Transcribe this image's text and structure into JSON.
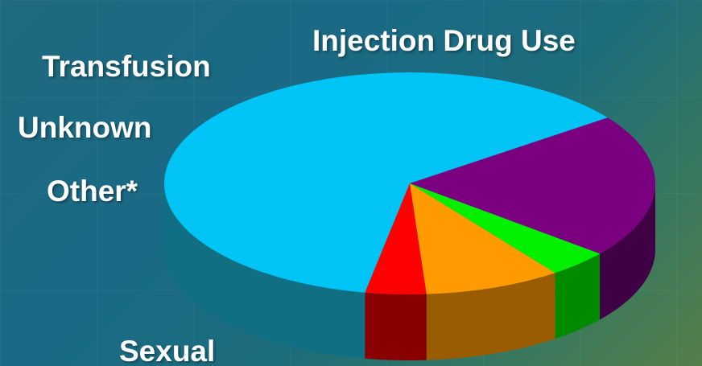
{
  "chart_data": {
    "type": "pie",
    "title": "",
    "style": "3d",
    "legend": "none",
    "slices": [
      {
        "label": "Injection Drug Use",
        "value": 62,
        "color": "#00c4f5",
        "side_color": "#106f82"
      },
      {
        "label": "Sexual",
        "value": 21,
        "color": "#7a0080",
        "side_color": "#400046"
      },
      {
        "label": "Other*",
        "value": 4,
        "color": "#00f000",
        "side_color": "#008a00"
      },
      {
        "label": "Unknown",
        "value": 9,
        "color": "#ff9a00",
        "side_color": "#995c00"
      },
      {
        "label": "Transfusion",
        "value": 4,
        "color": "#ff0000",
        "side_color": "#8a0000"
      }
    ]
  }
}
